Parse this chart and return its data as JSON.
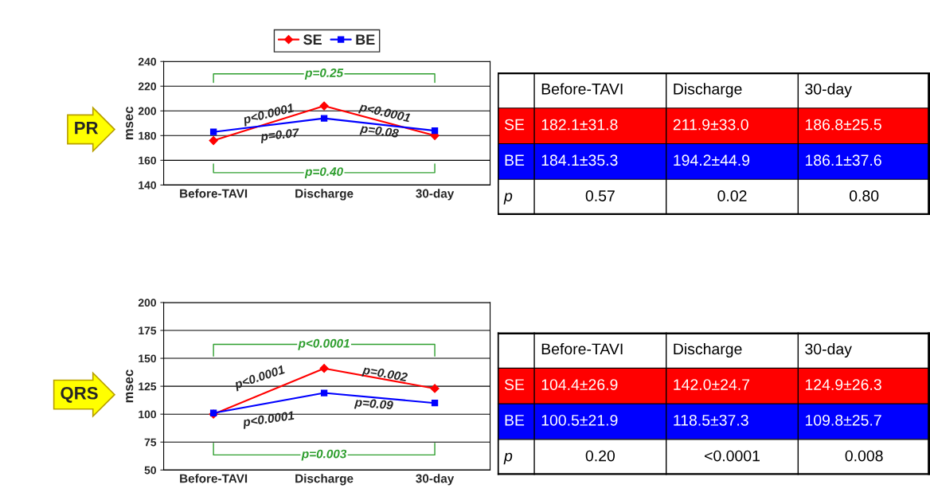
{
  "chart_data": [
    {
      "type": "line",
      "categories": [
        "Before-TAVI",
        "Discharge",
        "30-day"
      ],
      "ylabel": "msec",
      "ylim": [
        140,
        240
      ],
      "yticks": [
        140,
        160,
        180,
        200,
        220,
        240
      ],
      "grid": "y",
      "legend": "top",
      "series": [
        {
          "name": "SE",
          "color": "#ff0000",
          "marker": "diamond",
          "values": [
            176,
            204,
            180
          ]
        },
        {
          "name": "BE",
          "color": "#0000ff",
          "marker": "square",
          "values": [
            183,
            194,
            184
          ]
        }
      ],
      "annotations": [
        "PR",
        "p<0.0001",
        "p=0.07",
        "p<0.0001",
        "p=0.08",
        "p=0.25",
        "p=0.40"
      ]
    },
    {
      "type": "other",
      "categories": [
        "Before-TAVI",
        "Discharge",
        "30-day"
      ],
      "y_categories": [
        "SE",
        "BE",
        "p"
      ],
      "colors": [
        "#ff0000",
        "#0000ff",
        "#ffffff"
      ],
      "cell_labels": [
        [
          "182.1±31.8",
          "211.9±33.0",
          "186.8±25.5"
        ],
        [
          "184.1±35.3",
          "194.2±44.9",
          "186.1±37.6"
        ],
        [
          "0.57",
          "0.02",
          "0.80"
        ]
      ]
    },
    {
      "type": "line",
      "categories": [
        "Before-TAVI",
        "Discharge",
        "30-day"
      ],
      "ylabel": "msec",
      "ylim": [
        50,
        200
      ],
      "yticks": [
        50,
        75,
        100,
        125,
        150,
        175,
        200
      ],
      "grid": "y",
      "series": [
        {
          "color": "#ff0000",
          "marker": "diamond",
          "values": [
            100,
            141,
            123
          ]
        },
        {
          "color": "#0000ff",
          "marker": "square",
          "values": [
            101,
            119,
            110
          ]
        }
      ],
      "annotations": [
        "QRS",
        "p<0.0001",
        "p<0.0001",
        "p=0.002",
        "p=0.09",
        "p<0.0001",
        "p=0.003"
      ]
    },
    {
      "type": "other",
      "categories": [
        "Before-TAVI",
        "Discharge",
        "30-day"
      ],
      "y_categories": [
        "SE",
        "BE",
        "p"
      ],
      "colors": [
        "#ff0000",
        "#0000ff",
        "#ffffff"
      ],
      "cell_labels": [
        [
          "104.4±26.9",
          "142.0±24.7",
          "124.9±26.3"
        ],
        [
          "100.5±21.9",
          "118.5±37.3",
          "109.8±25.7"
        ],
        [
          "0.20",
          "<0.0001",
          "0.008"
        ]
      ]
    }
  ]
}
